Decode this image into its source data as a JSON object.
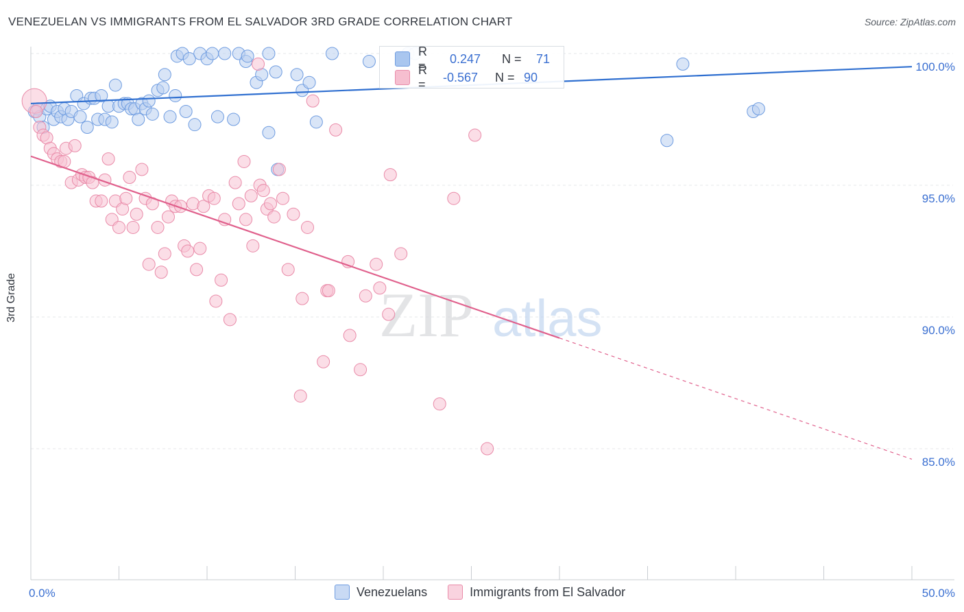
{
  "title": "VENEZUELAN VS IMMIGRANTS FROM EL SALVADOR 3RD GRADE CORRELATION CHART",
  "source": "Source: ZipAtlas.com",
  "watermark": {
    "zip": "ZIP",
    "atlas": "atlas"
  },
  "legend": {
    "r_label": "R =",
    "n_label": "N =",
    "rows": [
      {
        "r": "0.247",
        "n": "71",
        "color": "#a9c6ef",
        "border": "#6d9be0"
      },
      {
        "r": "-0.567",
        "n": "90",
        "color": "#f6bfd0",
        "border": "#e98aa8"
      }
    ]
  },
  "bottom_legend": [
    {
      "label": "Venezuelans",
      "color": "#c9daf4",
      "border": "#6d9be0"
    },
    {
      "label": "Immigrants from El Salvador",
      "color": "#f9d3df",
      "border": "#e98aa8"
    }
  ],
  "chart_data": {
    "type": "scatter",
    "title": "VENEZUELAN VS IMMIGRANTS FROM EL SALVADOR 3RD GRADE CORRELATION CHART",
    "xlabel": "",
    "ylabel": "3rd Grade",
    "xlim": [
      0,
      50
    ],
    "ylim": [
      80.5,
      100.7
    ],
    "x_tick_labels": [
      {
        "value": 0,
        "label": "0.0%"
      },
      {
        "value": 50,
        "label": "50.0%"
      }
    ],
    "y_tick_labels": [
      {
        "value": 100,
        "label": "100.0%"
      },
      {
        "value": 95,
        "label": "95.0%"
      },
      {
        "value": 90,
        "label": "90.0%"
      },
      {
        "value": 85,
        "label": "85.0%"
      }
    ],
    "grid": true,
    "series": [
      {
        "name": "Venezuelans",
        "color": "#6d9be0",
        "fill": "#b9d0f1",
        "trend": {
          "x": [
            0,
            50
          ],
          "y": [
            98.1,
            99.5
          ],
          "color": "#2f6fd0"
        },
        "points": [
          [
            0.2,
            97.8
          ],
          [
            0.4,
            97.9
          ],
          [
            0.5,
            97.6
          ],
          [
            0.7,
            97.2
          ],
          [
            0.9,
            97.9
          ],
          [
            1.1,
            98.0
          ],
          [
            1.3,
            97.5
          ],
          [
            1.5,
            97.8
          ],
          [
            1.7,
            97.6
          ],
          [
            1.9,
            97.9
          ],
          [
            2.1,
            97.5
          ],
          [
            2.3,
            97.8
          ],
          [
            2.6,
            98.4
          ],
          [
            2.8,
            97.6
          ],
          [
            3.0,
            98.1
          ],
          [
            3.2,
            97.2
          ],
          [
            3.4,
            98.3
          ],
          [
            3.6,
            98.3
          ],
          [
            3.8,
            97.5
          ],
          [
            4.0,
            98.4
          ],
          [
            4.2,
            97.5
          ],
          [
            4.4,
            98.0
          ],
          [
            4.6,
            97.4
          ],
          [
            4.8,
            98.8
          ],
          [
            5.0,
            98.0
          ],
          [
            5.3,
            98.1
          ],
          [
            5.5,
            98.1
          ],
          [
            5.7,
            97.9
          ],
          [
            5.9,
            97.9
          ],
          [
            6.1,
            97.5
          ],
          [
            6.3,
            98.1
          ],
          [
            6.5,
            97.9
          ],
          [
            6.7,
            98.2
          ],
          [
            6.9,
            97.7
          ],
          [
            7.2,
            98.6
          ],
          [
            7.5,
            98.7
          ],
          [
            7.6,
            99.2
          ],
          [
            7.9,
            97.6
          ],
          [
            8.2,
            98.4
          ],
          [
            8.3,
            99.9
          ],
          [
            8.6,
            100.0
          ],
          [
            8.8,
            97.8
          ],
          [
            9.0,
            99.8
          ],
          [
            9.3,
            97.3
          ],
          [
            9.6,
            100.0
          ],
          [
            10.0,
            99.8
          ],
          [
            10.3,
            100.0
          ],
          [
            10.6,
            97.6
          ],
          [
            11.0,
            100.0
          ],
          [
            11.5,
            97.5
          ],
          [
            11.8,
            100.0
          ],
          [
            12.2,
            99.7
          ],
          [
            12.3,
            99.9
          ],
          [
            12.8,
            98.9
          ],
          [
            13.1,
            99.2
          ],
          [
            13.5,
            97.0
          ],
          [
            13.5,
            100.0
          ],
          [
            13.9,
            99.3
          ],
          [
            14.0,
            95.6
          ],
          [
            15.1,
            99.2
          ],
          [
            15.4,
            98.6
          ],
          [
            15.8,
            98.9
          ],
          [
            16.2,
            97.4
          ],
          [
            17.1,
            100.0
          ],
          [
            19.2,
            99.7
          ],
          [
            21.4,
            100.0
          ],
          [
            21.8,
            100.0
          ],
          [
            36.1,
            96.7
          ],
          [
            37.0,
            99.6
          ],
          [
            41.0,
            97.8
          ],
          [
            41.3,
            97.9
          ]
        ]
      },
      {
        "name": "Immigrants from El Salvador",
        "color": "#e98aa8",
        "fill": "#f7c3d3",
        "trend": {
          "x": [
            0,
            30
          ],
          "y": [
            96.1,
            89.2
          ],
          "dash_x": [
            30,
            50
          ],
          "dash_y": [
            89.2,
            84.6
          ],
          "color": "#e0608c"
        },
        "points": [
          [
            0.2,
            98.2
          ],
          [
            0.3,
            97.8
          ],
          [
            0.5,
            97.2
          ],
          [
            0.7,
            96.9
          ],
          [
            0.9,
            96.8
          ],
          [
            1.1,
            96.4
          ],
          [
            1.3,
            96.2
          ],
          [
            1.5,
            96.0
          ],
          [
            1.7,
            95.9
          ],
          [
            1.9,
            95.9
          ],
          [
            2.0,
            96.4
          ],
          [
            2.3,
            95.1
          ],
          [
            2.5,
            96.5
          ],
          [
            2.7,
            95.2
          ],
          [
            2.9,
            95.4
          ],
          [
            3.1,
            95.3
          ],
          [
            3.3,
            95.3
          ],
          [
            3.5,
            95.1
          ],
          [
            3.7,
            94.4
          ],
          [
            4.0,
            94.4
          ],
          [
            4.2,
            95.2
          ],
          [
            4.4,
            96.0
          ],
          [
            4.6,
            93.7
          ],
          [
            4.8,
            94.4
          ],
          [
            5.0,
            93.4
          ],
          [
            5.2,
            94.1
          ],
          [
            5.4,
            94.5
          ],
          [
            5.6,
            95.3
          ],
          [
            5.8,
            93.4
          ],
          [
            6.0,
            93.9
          ],
          [
            6.3,
            95.6
          ],
          [
            6.5,
            94.5
          ],
          [
            6.7,
            92.0
          ],
          [
            6.9,
            94.3
          ],
          [
            7.2,
            93.4
          ],
          [
            7.4,
            91.7
          ],
          [
            7.6,
            92.4
          ],
          [
            7.8,
            93.8
          ],
          [
            8.0,
            94.4
          ],
          [
            8.2,
            94.2
          ],
          [
            8.5,
            94.2
          ],
          [
            8.7,
            92.7
          ],
          [
            8.9,
            92.5
          ],
          [
            9.2,
            94.3
          ],
          [
            9.4,
            91.8
          ],
          [
            9.6,
            92.6
          ],
          [
            9.8,
            94.2
          ],
          [
            10.1,
            94.6
          ],
          [
            10.4,
            94.5
          ],
          [
            10.5,
            90.6
          ],
          [
            10.8,
            91.4
          ],
          [
            11.0,
            93.7
          ],
          [
            11.3,
            89.9
          ],
          [
            11.6,
            95.1
          ],
          [
            11.8,
            94.3
          ],
          [
            12.1,
            95.9
          ],
          [
            12.2,
            93.7
          ],
          [
            12.5,
            94.6
          ],
          [
            12.6,
            92.7
          ],
          [
            13.0,
            95.0
          ],
          [
            13.2,
            94.8
          ],
          [
            13.4,
            94.1
          ],
          [
            13.6,
            94.3
          ],
          [
            13.8,
            93.8
          ],
          [
            14.1,
            95.6
          ],
          [
            14.3,
            94.5
          ],
          [
            14.6,
            91.8
          ],
          [
            14.9,
            93.9
          ],
          [
            15.3,
            87.0
          ],
          [
            15.4,
            90.7
          ],
          [
            15.7,
            93.4
          ],
          [
            16.0,
            98.2
          ],
          [
            16.6,
            88.3
          ],
          [
            16.8,
            91.0
          ],
          [
            16.9,
            91.0
          ],
          [
            17.3,
            97.1
          ],
          [
            18.0,
            92.1
          ],
          [
            18.1,
            89.3
          ],
          [
            18.7,
            88.0
          ],
          [
            19.0,
            90.8
          ],
          [
            19.6,
            92.0
          ],
          [
            19.8,
            91.1
          ],
          [
            20.3,
            90.1
          ],
          [
            20.4,
            95.4
          ],
          [
            21.0,
            92.4
          ],
          [
            23.2,
            86.7
          ],
          [
            24.0,
            94.5
          ],
          [
            25.2,
            96.9
          ],
          [
            25.9,
            85.0
          ],
          [
            12.9,
            99.6
          ]
        ]
      }
    ]
  }
}
